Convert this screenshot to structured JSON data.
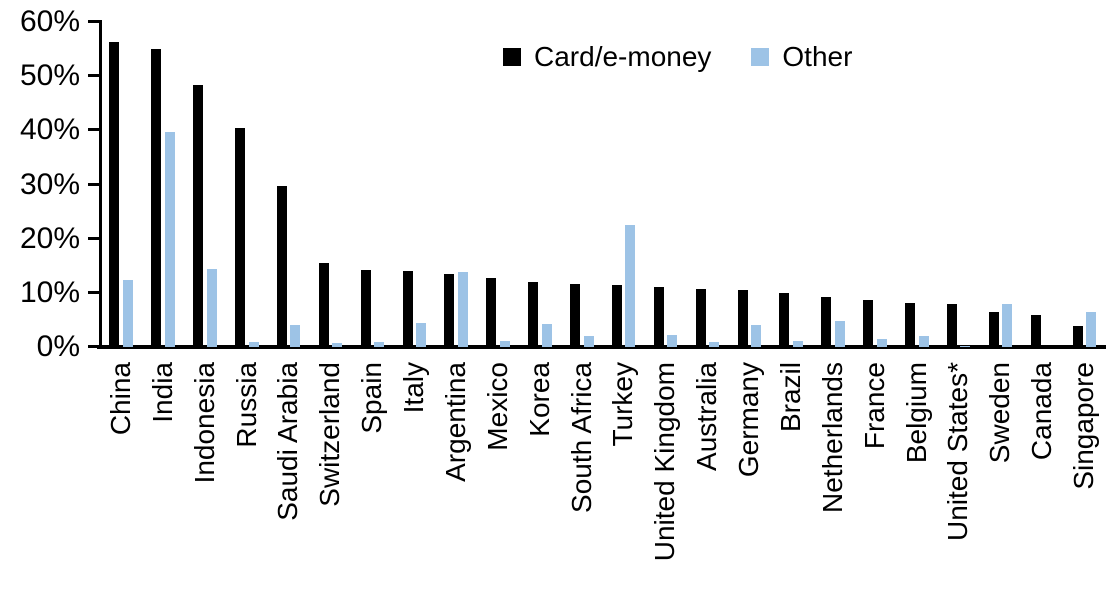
{
  "chart_data": {
    "type": "bar",
    "title": "",
    "xlabel": "",
    "ylabel": "",
    "ylim": [
      0,
      60
    ],
    "ytick_labels": [
      "0%",
      "10%",
      "20%",
      "30%",
      "40%",
      "50%",
      "60%"
    ],
    "grid": false,
    "legend_position": "top-center",
    "x_label_rotation": -90,
    "categories": [
      "China",
      "India",
      "Indonesia",
      "Russia",
      "Saudi Arabia",
      "Switzerland",
      "Spain",
      "Italy",
      "Argentina",
      "Mexico",
      "Korea",
      "South Africa",
      "Turkey",
      "United Kingdom",
      "Australia",
      "Germany",
      "Brazil",
      "Netherlands",
      "France",
      "Belgium",
      "United States*",
      "Sweden",
      "Canada",
      "Singapore"
    ],
    "series": [
      {
        "name": "Card/e-money",
        "color": "#000000",
        "values": [
          56.3,
          55.0,
          48.3,
          40.5,
          29.8,
          15.6,
          14.2,
          14.1,
          13.4,
          12.8,
          12.1,
          11.6,
          11.5,
          11.0,
          10.7,
          10.5,
          10.0,
          9.2,
          8.7,
          8.2,
          7.9,
          6.5,
          5.9,
          3.8
        ]
      },
      {
        "name": "Other",
        "color": "#9DC3E6",
        "values": [
          12.3,
          39.7,
          14.5,
          1.0,
          4.0,
          0.8,
          1.0,
          4.5,
          13.8,
          1.2,
          4.3,
          2.0,
          22.5,
          2.2,
          1.0,
          4.0,
          1.2,
          4.8,
          1.5,
          2.0,
          0.2,
          8.0,
          0.0,
          6.5
        ]
      }
    ]
  },
  "colors": {
    "axis": "#000000",
    "background": "#FFFFFF"
  }
}
